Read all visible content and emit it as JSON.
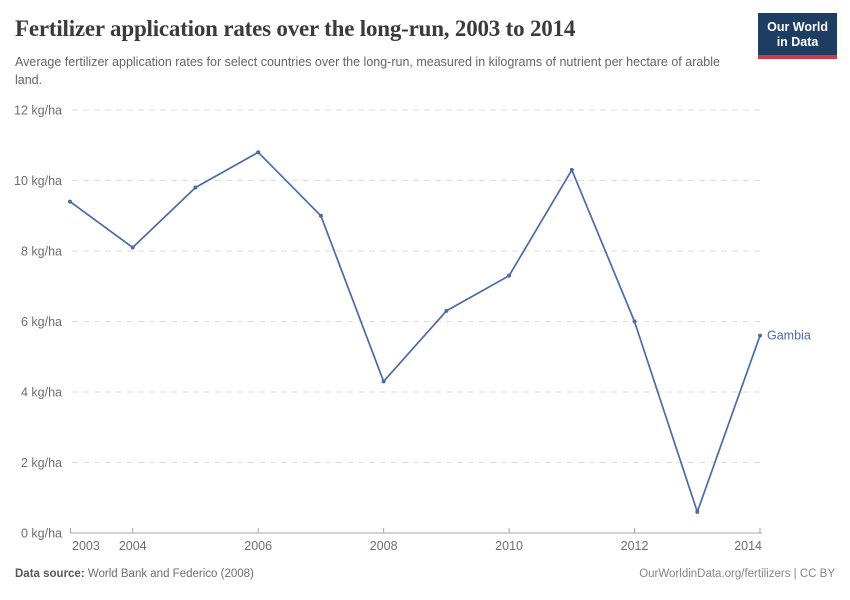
{
  "header": {
    "title": "Fertilizer application rates over the long-run, 2003 to 2014",
    "subtitle": "Average fertilizer application rates for select countries over the long-run, measured in kilograms of nutrient per hectare of arable land.",
    "logo": {
      "line1": "Our World",
      "line2": "in Data"
    }
  },
  "chart_data": {
    "type": "line",
    "title": "Fertilizer application rates over the long-run, 2003 to 2014",
    "xlabel": "",
    "ylabel": "kg of nutrient per hectare of arable land",
    "x": [
      2003,
      2004,
      2005,
      2006,
      2007,
      2008,
      2009,
      2010,
      2011,
      2012,
      2013,
      2014
    ],
    "series": [
      {
        "name": "Gambia",
        "color": "#4d6aa5",
        "values": [
          9.4,
          8.1,
          9.8,
          10.8,
          9.0,
          4.3,
          6.3,
          7.3,
          10.3,
          6.0,
          0.6,
          5.6
        ]
      }
    ],
    "xlim": [
      2003,
      2014
    ],
    "ylim": [
      0,
      12
    ],
    "xticks": [
      2003,
      2004,
      2006,
      2008,
      2010,
      2012,
      2014
    ],
    "yticks": [
      0,
      2,
      4,
      6,
      8,
      10,
      12
    ],
    "ytick_unit": " kg/ha",
    "grid": "horizontal-dashed",
    "legend_position": "end-of-line-label"
  },
  "footer": {
    "data_source_label": "Data source:",
    "data_source_value": " World Bank and Federico (2008)",
    "link_text": "OurWorldinData.org/fertilizers | CC BY"
  },
  "colors": {
    "line": "#4d6aa5",
    "gridline": "#dedede",
    "axis": "#a5a5a5",
    "tick_label": "#6e6e6e",
    "logo_bg": "#1d3d63",
    "logo_stripe": "#d23a47"
  }
}
